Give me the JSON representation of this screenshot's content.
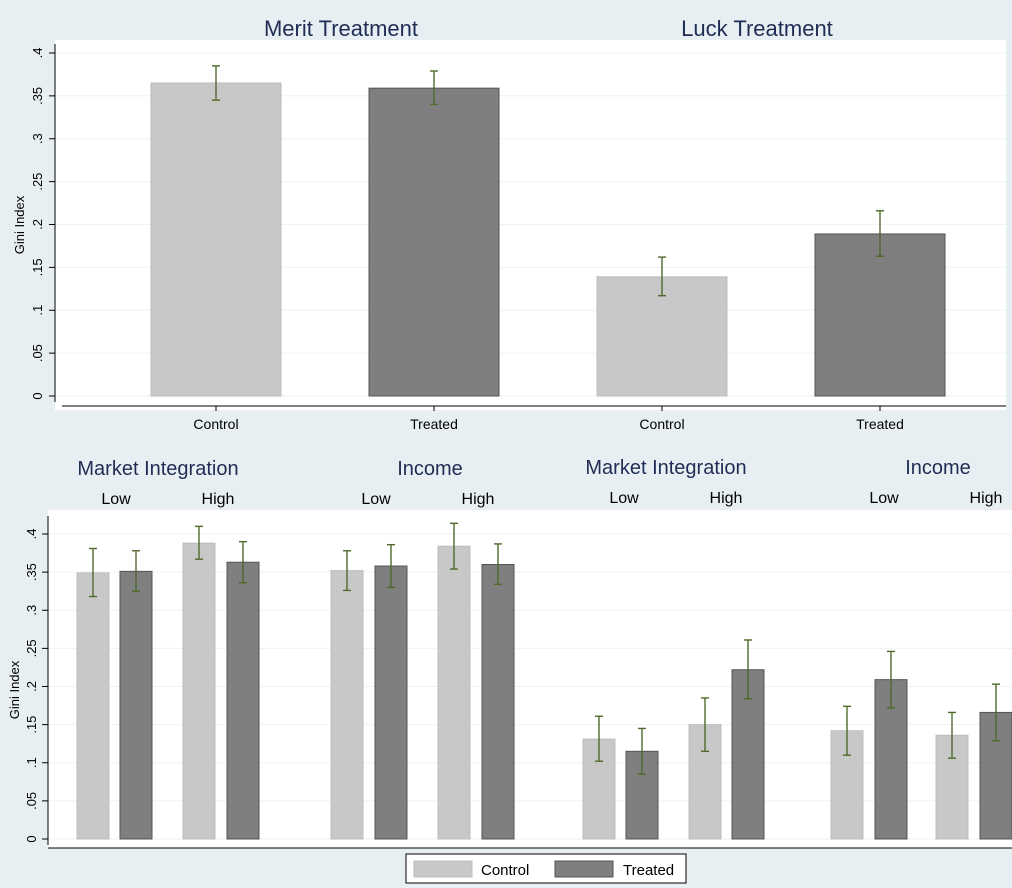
{
  "chart_data": [
    {
      "type": "bar",
      "titles": [
        "Merit Treatment",
        "Luck Treatment"
      ],
      "ylabel": "Gini Index",
      "ylim": [
        0,
        0.4
      ],
      "yticks": [
        "0",
        ".05",
        ".1",
        ".15",
        ".2",
        ".25",
        ".3",
        ".35",
        ".4"
      ],
      "bars": [
        {
          "group": "Merit Treatment",
          "label": "Control",
          "value": 0.365,
          "ci": [
            0.345,
            0.385
          ]
        },
        {
          "group": "Merit Treatment",
          "label": "Treated",
          "value": 0.359,
          "ci": [
            0.34,
            0.379
          ]
        },
        {
          "group": "Luck Treatment",
          "label": "Control",
          "value": 0.139,
          "ci": [
            0.117,
            0.162
          ]
        },
        {
          "group": "Luck Treatment",
          "label": "Treated",
          "value": 0.189,
          "ci": [
            0.163,
            0.216
          ]
        }
      ],
      "colors": {
        "Control": "#c8c8c8",
        "Treated": "#7f7f7f",
        "errorbar": "#4f6a2a"
      }
    },
    {
      "type": "bar",
      "headers": [
        {
          "title": "Market Integration",
          "subs": [
            "Low",
            "High"
          ]
        },
        {
          "title": "Income",
          "subs": [
            "Low",
            "High"
          ]
        },
        {
          "title": "Market Integration",
          "subs": [
            "Low",
            "High"
          ]
        },
        {
          "title": "Income",
          "subs": [
            "Low",
            "High"
          ]
        }
      ],
      "ylabel": "Gini Index",
      "ylim": [
        0,
        0.4
      ],
      "yticks": [
        "0",
        ".05",
        ".1",
        ".15",
        ".2",
        ".25",
        ".3",
        ".35",
        ".4"
      ],
      "bars": [
        {
          "treatment": "Merit",
          "factor": "Market Integration",
          "level": "Low",
          "series": "Control",
          "value": 0.349,
          "ci": [
            0.318,
            0.381
          ]
        },
        {
          "treatment": "Merit",
          "factor": "Market Integration",
          "level": "Low",
          "series": "Treated",
          "value": 0.351,
          "ci": [
            0.325,
            0.378
          ]
        },
        {
          "treatment": "Merit",
          "factor": "Market Integration",
          "level": "High",
          "series": "Control",
          "value": 0.388,
          "ci": [
            0.367,
            0.41
          ]
        },
        {
          "treatment": "Merit",
          "factor": "Market Integration",
          "level": "High",
          "series": "Treated",
          "value": 0.363,
          "ci": [
            0.336,
            0.39
          ]
        },
        {
          "treatment": "Merit",
          "factor": "Income",
          "level": "Low",
          "series": "Control",
          "value": 0.352,
          "ci": [
            0.326,
            0.378
          ]
        },
        {
          "treatment": "Merit",
          "factor": "Income",
          "level": "Low",
          "series": "Treated",
          "value": 0.358,
          "ci": [
            0.33,
            0.386
          ]
        },
        {
          "treatment": "Merit",
          "factor": "Income",
          "level": "High",
          "series": "Control",
          "value": 0.384,
          "ci": [
            0.354,
            0.414
          ]
        },
        {
          "treatment": "Merit",
          "factor": "Income",
          "level": "High",
          "series": "Treated",
          "value": 0.36,
          "ci": [
            0.334,
            0.387
          ]
        },
        {
          "treatment": "Luck",
          "factor": "Market Integration",
          "level": "Low",
          "series": "Control",
          "value": 0.131,
          "ci": [
            0.102,
            0.161
          ]
        },
        {
          "treatment": "Luck",
          "factor": "Market Integration",
          "level": "Low",
          "series": "Treated",
          "value": 0.115,
          "ci": [
            0.085,
            0.145
          ]
        },
        {
          "treatment": "Luck",
          "factor": "Market Integration",
          "level": "High",
          "series": "Control",
          "value": 0.15,
          "ci": [
            0.115,
            0.185
          ]
        },
        {
          "treatment": "Luck",
          "factor": "Market Integration",
          "level": "High",
          "series": "Treated",
          "value": 0.222,
          "ci": [
            0.184,
            0.261
          ]
        },
        {
          "treatment": "Luck",
          "factor": "Income",
          "level": "Low",
          "series": "Control",
          "value": 0.142,
          "ci": [
            0.11,
            0.174
          ]
        },
        {
          "treatment": "Luck",
          "factor": "Income",
          "level": "Low",
          "series": "Treated",
          "value": 0.209,
          "ci": [
            0.172,
            0.246
          ]
        },
        {
          "treatment": "Luck",
          "factor": "Income",
          "level": "High",
          "series": "Control",
          "value": 0.136,
          "ci": [
            0.106,
            0.166
          ]
        },
        {
          "treatment": "Luck",
          "factor": "Income",
          "level": "High",
          "series": "Treated",
          "value": 0.166,
          "ci": [
            0.129,
            0.203
          ]
        }
      ],
      "legend": {
        "position": "bottom",
        "entries": [
          "Control",
          "Treated"
        ]
      },
      "colors": {
        "Control": "#c8c8c8",
        "Treated": "#7f7f7f",
        "errorbar": "#4f6a2a"
      }
    }
  ]
}
